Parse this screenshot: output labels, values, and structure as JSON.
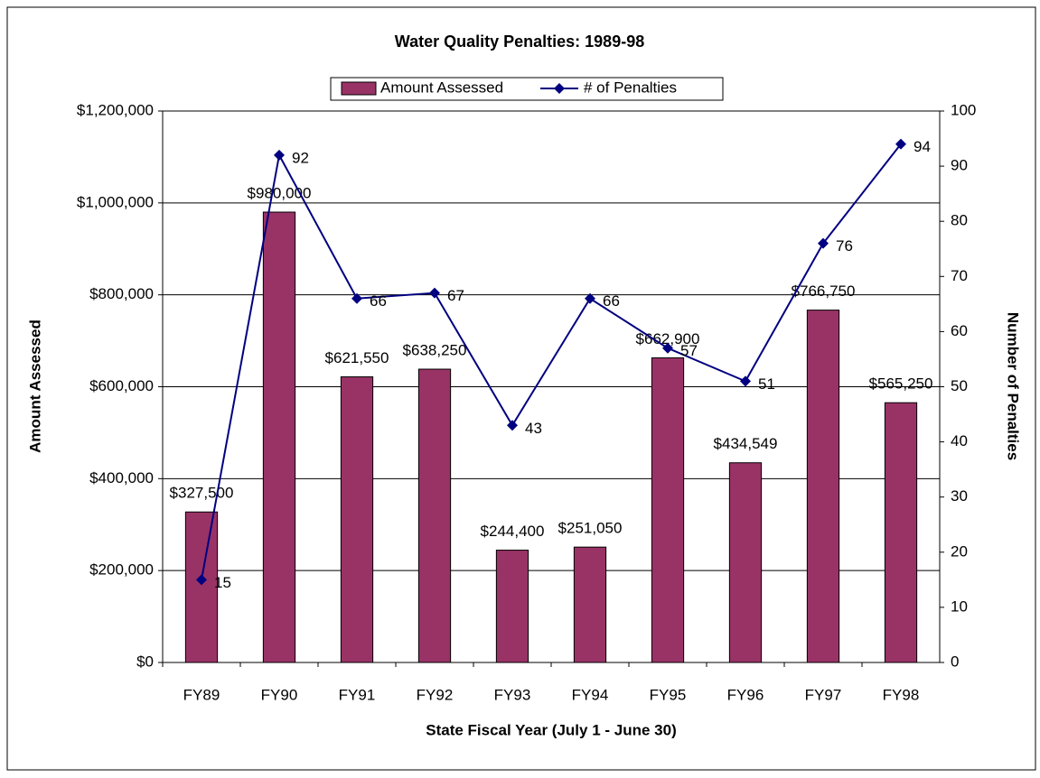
{
  "chart_data": {
    "type": "bar",
    "title": "Water Quality Penalties: 1989-98",
    "x_label": "State Fiscal Year (July 1 - June 30)",
    "y_label": "Amount Assessed",
    "y2_label": "Number of Penalties",
    "categories": [
      "FY89",
      "FY90",
      "FY91",
      "FY92",
      "FY93",
      "FY94",
      "FY95",
      "FY96",
      "FY97",
      "FY98"
    ],
    "series": [
      {
        "name": "Amount Assessed",
        "type": "bar",
        "color": "#993366",
        "values": [
          327500,
          980000,
          621550,
          638250,
          244400,
          251050,
          662900,
          434549,
          766750,
          565250
        ],
        "value_labels": [
          "$327,500",
          "$980,000",
          "$621,550",
          "$638,250",
          "$244,400",
          "$251,050",
          "$662,900",
          "$434,549",
          "$766,750",
          "$565,250"
        ]
      },
      {
        "name": "# of Penalties",
        "type": "line",
        "axis": "y2",
        "color": "#000080",
        "values": [
          15,
          92,
          66,
          67,
          43,
          66,
          57,
          51,
          76,
          94
        ]
      }
    ],
    "ylim": [
      0,
      1200000
    ],
    "yticks": [
      {
        "value": 0,
        "label": "$0"
      },
      {
        "value": 200000,
        "label": "$200,000"
      },
      {
        "value": 400000,
        "label": "$400,000"
      },
      {
        "value": 600000,
        "label": "$600,000"
      },
      {
        "value": 800000,
        "label": "$800,000"
      },
      {
        "value": 1000000,
        "label": "$1,000,000"
      },
      {
        "value": 1200000,
        "label": "$1,200,000"
      }
    ],
    "y2lim": [
      0,
      100
    ],
    "y2ticks": [
      0,
      10,
      20,
      30,
      40,
      50,
      60,
      70,
      80,
      90,
      100
    ],
    "grid": true,
    "legend": "top"
  }
}
